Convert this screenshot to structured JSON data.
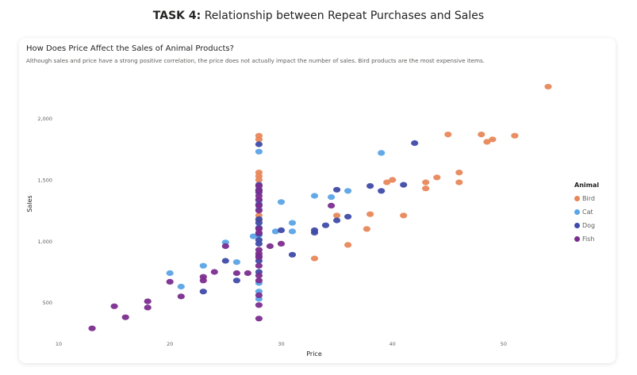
{
  "page": {
    "heading_bold": "TASK 4:",
    "heading_rest": "Relationship between Repeat Purchases and Sales"
  },
  "card": {
    "title": "How Does Price Affect the Sales of Animal Products?",
    "subtitle": "Although sales and price have a strong positive correlation, the price does not actually impact the number of sales. Bird products are the most expensive items."
  },
  "chart_data": {
    "type": "scatter",
    "title": "How Does Price Affect the Sales of Animal Products?",
    "xlabel": "Price",
    "ylabel": "Sales",
    "xlim": [
      9,
      55
    ],
    "ylim": [
      220,
      2320
    ],
    "xticks": [
      10,
      20,
      30,
      40,
      50
    ],
    "xtick_labels": [
      "10",
      "20",
      "30",
      "40",
      "50"
    ],
    "yticks": [
      500,
      1000,
      1500,
      2000
    ],
    "ytick_labels": [
      "500",
      "1,000",
      "1,500",
      "2,000"
    ],
    "grid": false,
    "legend": {
      "title": "Animal",
      "position": "right"
    },
    "series": [
      {
        "name": "Bird",
        "color": "#E8875A",
        "points": [
          [
            54,
            2260
          ],
          [
            51,
            1860
          ],
          [
            49,
            1830
          ],
          [
            48.5,
            1810
          ],
          [
            48,
            1870
          ],
          [
            45,
            1870
          ],
          [
            46,
            1560
          ],
          [
            46,
            1480
          ],
          [
            44,
            1520
          ],
          [
            43,
            1430
          ],
          [
            43,
            1480
          ],
          [
            41,
            1210
          ],
          [
            39.5,
            1480
          ],
          [
            40,
            1500
          ],
          [
            38,
            1220
          ],
          [
            37.7,
            1100
          ],
          [
            36,
            970
          ],
          [
            35,
            1210
          ],
          [
            33,
            860
          ],
          [
            28,
            1860
          ],
          [
            28,
            1830
          ],
          [
            28,
            1560
          ],
          [
            28,
            1530
          ],
          [
            28,
            1500
          ],
          [
            28,
            1210
          ],
          [
            28,
            1170
          ]
        ]
      },
      {
        "name": "Cat",
        "color": "#5BA4E6",
        "points": [
          [
            39,
            1720
          ],
          [
            36,
            1410
          ],
          [
            34.5,
            1360
          ],
          [
            33,
            1370
          ],
          [
            31,
            1150
          ],
          [
            31,
            1080
          ],
          [
            30,
            1320
          ],
          [
            29.5,
            1080
          ],
          [
            27.5,
            1040
          ],
          [
            25,
            990
          ],
          [
            23,
            800
          ],
          [
            21,
            630
          ],
          [
            20,
            740
          ],
          [
            26,
            830
          ],
          [
            28,
            1730
          ],
          [
            28,
            1330
          ],
          [
            28,
            1260
          ],
          [
            28,
            1050
          ],
          [
            28,
            660
          ],
          [
            28,
            590
          ],
          [
            28,
            530
          ]
        ]
      },
      {
        "name": "Dog",
        "color": "#3F4BA8",
        "points": [
          [
            42,
            1800
          ],
          [
            41,
            1460
          ],
          [
            39,
            1410
          ],
          [
            38,
            1450
          ],
          [
            35,
            1420
          ],
          [
            36,
            1200
          ],
          [
            35,
            1170
          ],
          [
            34,
            1130
          ],
          [
            33,
            1090
          ],
          [
            33,
            1070
          ],
          [
            31,
            890
          ],
          [
            30,
            1090
          ],
          [
            28,
            1790
          ],
          [
            28,
            1460
          ],
          [
            28,
            1420
          ],
          [
            28,
            1400
          ],
          [
            28,
            1300
          ],
          [
            28,
            1180
          ],
          [
            28,
            1150
          ],
          [
            28,
            1110
          ],
          [
            28,
            1060
          ],
          [
            28,
            1010
          ],
          [
            28,
            980
          ],
          [
            28,
            880
          ],
          [
            28,
            840
          ],
          [
            28,
            750
          ],
          [
            25,
            840
          ],
          [
            23,
            590
          ],
          [
            26,
            680
          ]
        ]
      },
      {
        "name": "Fish",
        "color": "#7B2D8E",
        "points": [
          [
            13,
            290
          ],
          [
            15,
            470
          ],
          [
            16,
            380
          ],
          [
            18,
            510
          ],
          [
            18,
            460
          ],
          [
            20,
            670
          ],
          [
            21,
            550
          ],
          [
            23,
            680
          ],
          [
            23,
            710
          ],
          [
            24,
            750
          ],
          [
            25,
            960
          ],
          [
            26,
            740
          ],
          [
            27,
            740
          ],
          [
            29,
            960
          ],
          [
            30,
            980
          ],
          [
            34.5,
            1290
          ],
          [
            28,
            1450
          ],
          [
            28,
            1410
          ],
          [
            28,
            1370
          ],
          [
            28,
            1340
          ],
          [
            28,
            1290
          ],
          [
            28,
            1250
          ],
          [
            28,
            1100
          ],
          [
            28,
            1070
          ],
          [
            28,
            930
          ],
          [
            28,
            900
          ],
          [
            28,
            870
          ],
          [
            28,
            800
          ],
          [
            28,
            720
          ],
          [
            28,
            680
          ],
          [
            28,
            560
          ],
          [
            28,
            480
          ],
          [
            28,
            370
          ]
        ]
      }
    ]
  }
}
